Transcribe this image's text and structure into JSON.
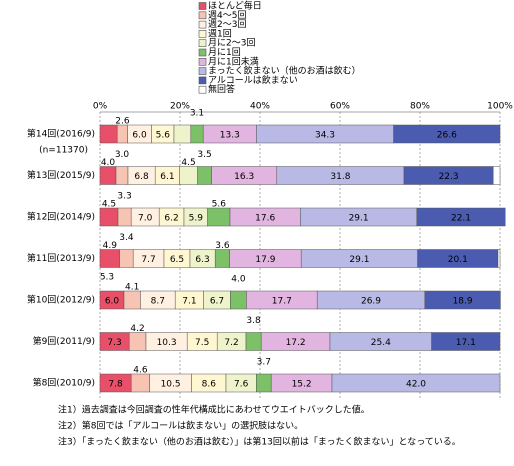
{
  "chart_data": {
    "type": "stacked-barh",
    "categories": [
      "第14回(2016/9)",
      "第13回(2015/9)",
      "第12回(2014/9)",
      "第11回(2013/9)",
      "第10回(2012/9)",
      "第9回(2011/9)",
      "第8回(2010/9)"
    ],
    "category_note": "(n=11370)",
    "series": [
      {
        "name": "ほとんど毎日",
        "color": "#e8506a",
        "values": [
          4.3,
          4.0,
          4.5,
          4.9,
          6.0,
          7.3,
          7.8
        ],
        "value_labels": [
          null,
          "4.0",
          "4.5",
          "4.9",
          "6.0",
          "7.3",
          "7.8"
        ]
      },
      {
        "name": "週4～5回",
        "color": "#f7c3b3",
        "values": [
          2.6,
          3.0,
          3.3,
          3.4,
          4.1,
          4.2,
          4.6
        ],
        "value_labels": [
          "2.6",
          "3.0",
          "3.3",
          "3.4",
          "4.1",
          "4.2",
          "4.6"
        ]
      },
      {
        "name": "週2～3回",
        "color": "#fff0e2",
        "values": [
          6.0,
          6.8,
          7.0,
          7.7,
          8.7,
          10.3,
          10.5
        ],
        "value_labels": [
          "6.0",
          "6.8",
          "7.0",
          "7.7",
          "8.7",
          "10.3",
          "10.5"
        ]
      },
      {
        "name": "週1回",
        "color": "#fff6d2",
        "values": [
          5.6,
          6.1,
          6.2,
          6.5,
          7.1,
          7.5,
          8.6
        ],
        "value_labels": [
          "5.6",
          "6.1",
          "6.2",
          "6.5",
          "7.1",
          "7.5",
          "8.6"
        ]
      },
      {
        "name": "月に2～3回",
        "color": "#eef3cc",
        "values": [
          4.2,
          4.5,
          5.9,
          6.3,
          6.7,
          7.2,
          7.6
        ],
        "value_labels": [
          null,
          "4.5",
          "5.9",
          "6.3",
          "6.7",
          "7.2",
          "7.6"
        ]
      },
      {
        "name": "月に1回",
        "color": "#7cc068",
        "values": [
          3.1,
          3.5,
          5.6,
          3.6,
          4.0,
          3.8,
          3.7
        ],
        "value_labels": [
          "3.1",
          "3.5",
          "5.6",
          "3.6",
          "4.0",
          "3.8",
          "3.7"
        ]
      },
      {
        "name": "月に1回未満",
        "color": "#e2b4e0",
        "values": [
          13.3,
          16.3,
          17.6,
          17.9,
          17.7,
          17.2,
          15.2
        ],
        "value_labels": [
          "13.3",
          "16.3",
          "17.6",
          "17.9",
          "17.7",
          "17.2",
          "15.2"
        ]
      },
      {
        "name": "まったく飲まない（他のお酒は飲む）",
        "color": "#b9b9e6",
        "values": [
          34.3,
          31.8,
          29.1,
          29.1,
          26.9,
          25.4,
          42.0
        ],
        "value_labels": [
          "34.3",
          "31.8",
          "29.1",
          "29.1",
          "26.9",
          "25.4",
          "42.0"
        ]
      },
      {
        "name": "アルコールは飲まない",
        "color": "#4b5cb0",
        "values": [
          26.6,
          22.3,
          22.1,
          20.1,
          18.9,
          17.1,
          null
        ],
        "value_labels": [
          "26.6",
          "22.3",
          "22.1",
          "20.1",
          "18.9",
          "17.1",
          null
        ]
      },
      {
        "name": "無回答",
        "color": "#ffffff",
        "values": [
          0,
          1.7,
          0,
          0.5,
          0,
          0,
          0
        ]
      }
    ],
    "annotations": [
      {
        "text": "5.3",
        "row": 4
      }
    ],
    "xlim": [
      0,
      100
    ],
    "xticks": [
      {
        "value": 0,
        "label": "0%"
      },
      {
        "value": 20,
        "label": "20%"
      },
      {
        "value": 40,
        "label": "40%"
      },
      {
        "value": 60,
        "label": "60%"
      },
      {
        "value": 80,
        "label": "80%"
      },
      {
        "value": 100,
        "label": "100%"
      }
    ],
    "grid": true,
    "notes": [
      "注1）過去調査は今回調査の性年代構成比にあわせてウエイトバックした値。",
      "注2）第8回では「アルコールは飲まない」の選択肢はない。",
      "注3）「まったく飲まない（他のお酒は飲む）」は第13回以前は「まったく飲まない」となっている。"
    ]
  }
}
